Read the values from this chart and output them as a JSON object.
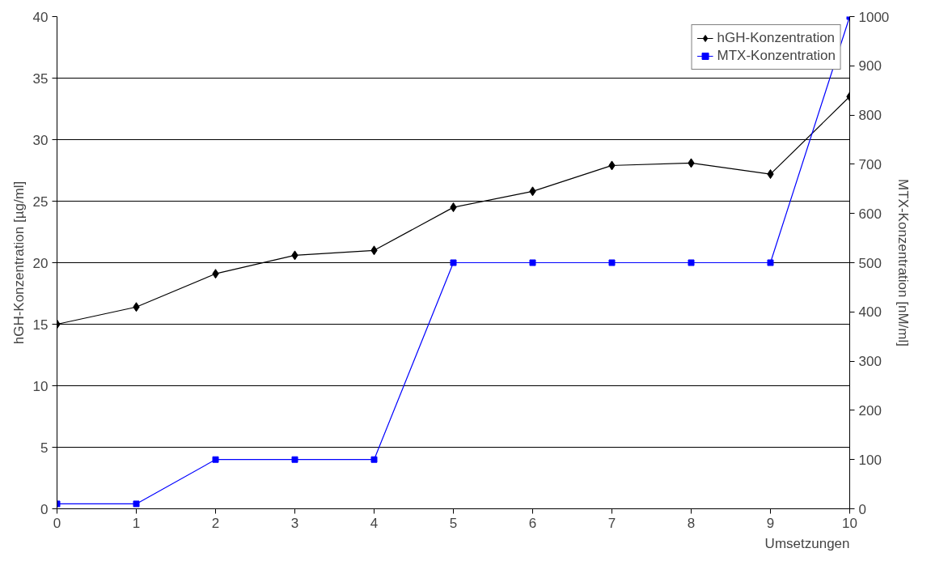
{
  "chart_data": {
    "type": "line",
    "xlabel": "Umsetzungen",
    "ylabel": "hGH-Konzentration [µg/ml]",
    "y2label": "MTX-Konzentration [nM/ml]",
    "x": [
      0,
      1,
      2,
      3,
      4,
      5,
      6,
      7,
      8,
      9,
      10
    ],
    "series": [
      {
        "name": "hGH-Konzentration",
        "color": "#000000",
        "marker": "diamond",
        "values": [
          15.0,
          16.4,
          19.1,
          20.6,
          21.0,
          24.5,
          25.8,
          27.9,
          28.1,
          27.2,
          33.5
        ]
      },
      {
        "name": "MTX-Konzentration",
        "color": "#0000ff",
        "marker": "square",
        "axis": "y2",
        "values": [
          10,
          10,
          100,
          100,
          100,
          500,
          500,
          500,
          500,
          500,
          1000
        ]
      }
    ],
    "xlim": [
      0,
      10
    ],
    "xticks": [
      0,
      1,
      2,
      3,
      4,
      5,
      6,
      7,
      8,
      9,
      10
    ],
    "ylim": [
      0,
      40
    ],
    "yticks": [
      0,
      5,
      10,
      15,
      20,
      25,
      30,
      35,
      40
    ],
    "y2lim": [
      0,
      1000
    ],
    "y2ticks": [
      0,
      100,
      200,
      300,
      400,
      500,
      600,
      700,
      800,
      900,
      1000
    ],
    "grid": "y",
    "legend": "top right",
    "line_style": "solid"
  }
}
